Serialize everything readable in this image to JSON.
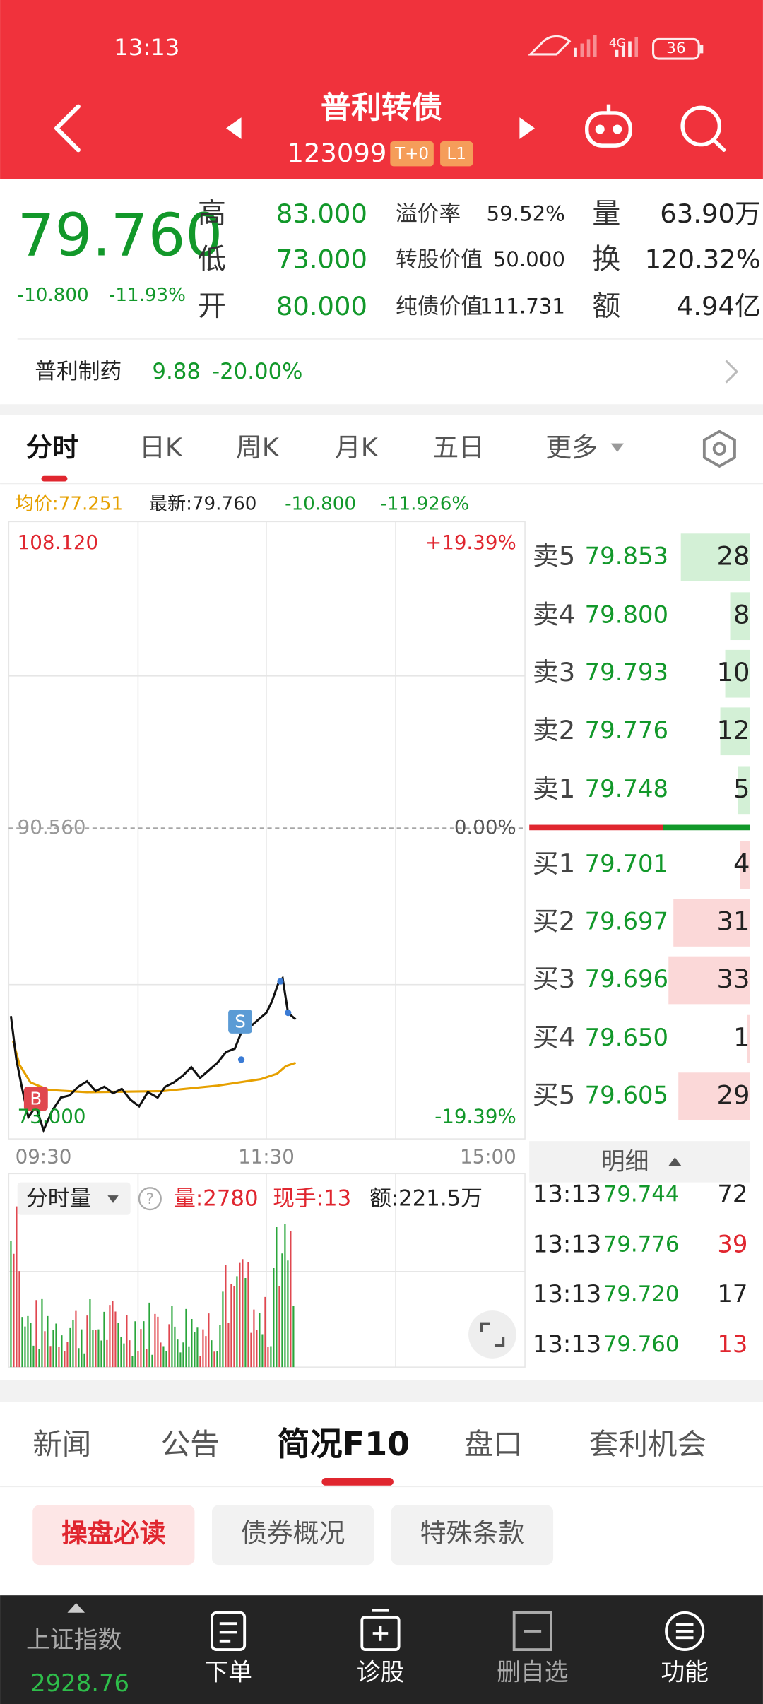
{
  "status_bar": {
    "time": "13:13",
    "battery": "36"
  },
  "header": {
    "title": "普利转债",
    "code": "123099",
    "tags": [
      "T+0",
      "L1"
    ]
  },
  "quote": {
    "price": "79.760",
    "change": "-10.800",
    "change_pct": "-11.93%",
    "stats": [
      {
        "label": "高",
        "value": "83.000"
      },
      {
        "label": "低",
        "value": "73.000"
      },
      {
        "label": "开",
        "value": "80.000"
      }
    ],
    "metrics": [
      {
        "label": "溢价率",
        "value": "59.52%"
      },
      {
        "label": "转股价值",
        "value": "50.000"
      },
      {
        "label": "纯债价值",
        "value": "111.731"
      }
    ],
    "volume": [
      {
        "label": "量",
        "value": "63.90万"
      },
      {
        "label": "换",
        "value": "120.32%"
      },
      {
        "label": "额",
        "value": "4.94亿"
      }
    ]
  },
  "stock": {
    "name": "普利制药",
    "price": "9.88",
    "change": "-20.00%"
  },
  "chart_tabs": [
    "分时",
    "日K",
    "周K",
    "月K",
    "五日",
    "更多"
  ],
  "info_line": {
    "avg": "均价:77.251",
    "latest": "最新:79.760",
    "change": "-10.800",
    "pct": "-11.926%"
  },
  "price_axis": {
    "top": "108.120",
    "mid": "90.560",
    "bottom": "73.000",
    "top_pct": "+19.39%",
    "mid_pct": "0.00%",
    "bottom_pct": "-19.39%"
  },
  "time_axis": [
    "09:30",
    "11:30",
    "15:00"
  ],
  "volume_panel": {
    "selector": "分时量",
    "volume": "量:2780",
    "current": "现手:13",
    "amount": "额:221.5万"
  },
  "order_book": {
    "asks": [
      {
        "label": "卖5",
        "price": "79.853",
        "qty": 28
      },
      {
        "label": "卖4",
        "price": "79.800",
        "qty": 8
      },
      {
        "label": "卖3",
        "price": "79.793",
        "qty": 10
      },
      {
        "label": "卖2",
        "price": "79.776",
        "qty": 12
      },
      {
        "label": "卖1",
        "price": "79.748",
        "qty": 5
      }
    ],
    "bids": [
      {
        "label": "买1",
        "price": "79.701",
        "qty": 4
      },
      {
        "label": "买2",
        "price": "79.697",
        "qty": 31
      },
      {
        "label": "买3",
        "price": "79.696",
        "qty": 33
      },
      {
        "label": "买4",
        "price": "79.650",
        "qty": 1
      },
      {
        "label": "买5",
        "price": "79.605",
        "qty": 29
      }
    ]
  },
  "ticks_header": "明细",
  "trades": [
    {
      "time": "13:13",
      "price": "79.744",
      "qty": "72",
      "color": "#222222"
    },
    {
      "time": "13:13",
      "price": "79.776",
      "qty": "39",
      "color": "#e0262f"
    },
    {
      "time": "13:13",
      "price": "79.720",
      "qty": "17",
      "color": "#222222"
    },
    {
      "time": "13:13",
      "price": "79.760",
      "qty": "13",
      "color": "#e0262f"
    }
  ],
  "bottom_tabs": [
    "新闻",
    "公告",
    "简况F10",
    "盘口",
    "套利机会"
  ],
  "sub_tabs": [
    "操盘必读",
    "债券概况",
    "特殊条款"
  ],
  "nav": {
    "index_name": "上证指数",
    "index_value": "2928.76",
    "items": [
      "下单",
      "诊股",
      "删自选",
      "功能"
    ]
  }
}
